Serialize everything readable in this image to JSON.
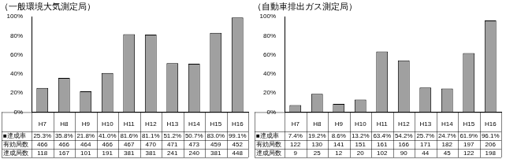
{
  "chart_data": [
    {
      "type": "bar",
      "title": "（一般環境大気測定局）",
      "categories": [
        "H7",
        "H8",
        "H9",
        "H10",
        "H11",
        "H12",
        "H13",
        "H14",
        "H15",
        "H16"
      ],
      "values": [
        25.3,
        35.8,
        21.8,
        41.0,
        81.6,
        81.1,
        51.2,
        50.7,
        83.0,
        99.1
      ],
      "color": "#a0a0a0",
      "ylim": [
        0,
        100
      ],
      "yticks": [
        {
          "value": 0,
          "label": "0%"
        },
        {
          "value": 20,
          "label": "20%"
        },
        {
          "value": 40,
          "label": "40%"
        },
        {
          "value": 60,
          "label": "60%"
        },
        {
          "value": 80,
          "label": "80%"
        },
        {
          "value": 100,
          "label": "100%"
        }
      ],
      "grid": false,
      "table": {
        "rows": [
          {
            "label": "■達成率",
            "cells": [
              "25.3%",
              "35.8%",
              "21.8%",
              "41.0%",
              "81.6%",
              "81.1%",
              "51.2%",
              "50.7%",
              "83.0%",
              "99.1%"
            ]
          },
          {
            "label": "有効局数",
            "cells": [
              466,
              466,
              464,
              466,
              467,
              470,
              471,
              473,
              459,
              452
            ]
          },
          {
            "label": "達成局数",
            "cells": [
              118,
              167,
              101,
              191,
              381,
              381,
              241,
              240,
              381,
              448
            ]
          }
        ]
      }
    },
    {
      "type": "bar",
      "title": "（自動車排出ガス測定局）",
      "categories": [
        "H7",
        "H8",
        "H9",
        "H10",
        "H11",
        "H12",
        "H13",
        "H14",
        "H15",
        "H16"
      ],
      "values": [
        7.4,
        19.2,
        8.6,
        13.2,
        63.4,
        54.2,
        25.7,
        24.7,
        61.9,
        96.1
      ],
      "color": "#a0a0a0",
      "ylim": [
        0,
        100
      ],
      "yticks": [
        {
          "value": 0,
          "label": "0%"
        },
        {
          "value": 20,
          "label": "20%"
        },
        {
          "value": 40,
          "label": "40%"
        },
        {
          "value": 60,
          "label": "60%"
        },
        {
          "value": 80,
          "label": "80%"
        },
        {
          "value": 100,
          "label": "100%"
        }
      ],
      "grid": false,
      "table": {
        "rows": [
          {
            "label": "■達成率",
            "cells": [
              "7.4%",
              "19.2%",
              "8.6%",
              "13.2%",
              "63.4%",
              "54.2%",
              "25.7%",
              "24.7%",
              "61.9%",
              "96.1%"
            ]
          },
          {
            "label": "有効局数",
            "cells": [
              122,
              130,
              141,
              151,
              161,
              166,
              171,
              182,
              197,
              206
            ]
          },
          {
            "label": "達成局数",
            "cells": [
              9,
              25,
              12,
              20,
              102,
              90,
              44,
              45,
              122,
              198
            ]
          }
        ]
      }
    }
  ]
}
